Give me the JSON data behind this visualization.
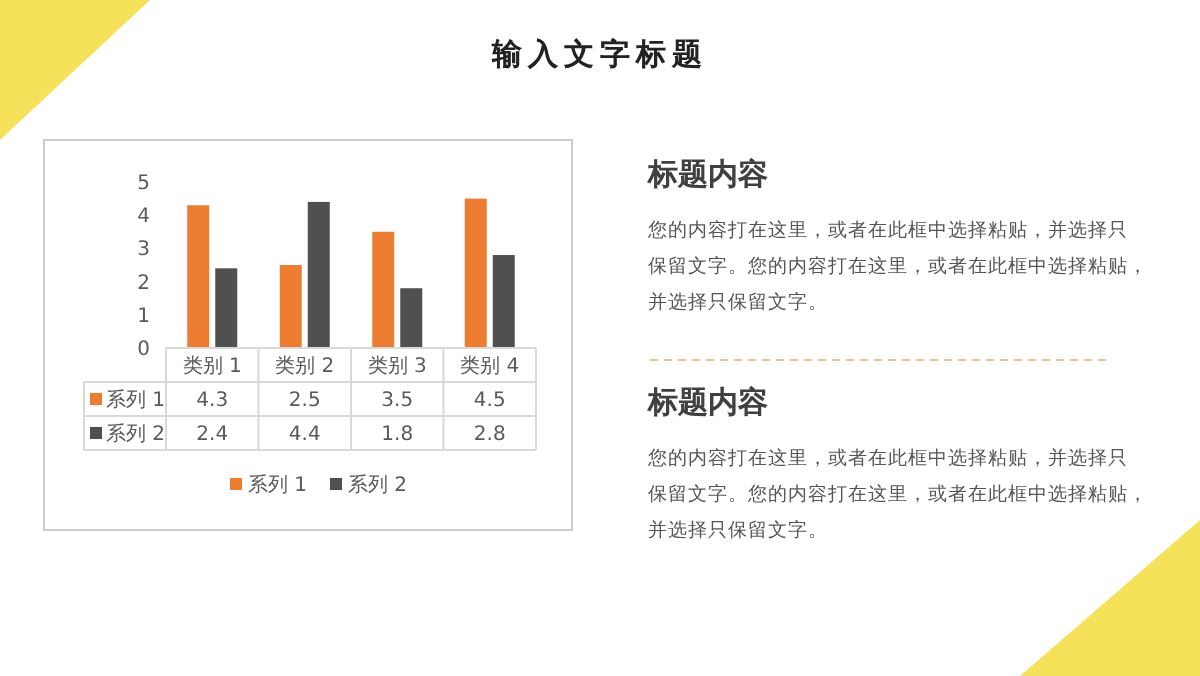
{
  "chart_data": {
    "type": "bar",
    "title": "输入文字标题",
    "categories": [
      "类别 1",
      "类别 2",
      "类别 3",
      "类别 4"
    ],
    "series": [
      {
        "name": "系列 1",
        "color": "#ed7d31",
        "values": [
          4.3,
          2.5,
          3.5,
          4.5
        ]
      },
      {
        "name": "系列 2",
        "color": "#505050",
        "values": [
          2.4,
          4.4,
          1.8,
          2.8
        ]
      }
    ],
    "ylim": [
      0,
      5
    ],
    "yticks": [
      0,
      1,
      2,
      3,
      4,
      5
    ],
    "data_labels": true,
    "legend": "bottom",
    "grid": false,
    "annotations": [
      "标题内容",
      "您的内容打在这里，或者在此框中选择粘贴，并选择只保留文字。您的内容打在这里，或者在此框中选择粘贴，并选择只保留文字。",
      "标题内容",
      "您的内容打在这里，或者在此框中选择粘贴，并选择只保留文字。您的内容打在这里，或者在此框中选择粘贴，并选择只保留文字。"
    ]
  }
}
